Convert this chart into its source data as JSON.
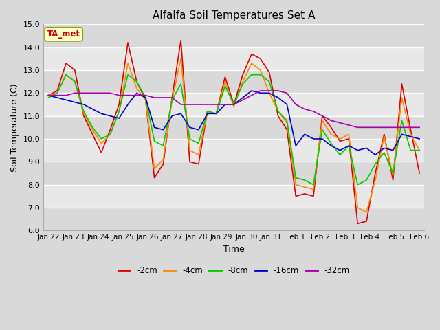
{
  "title": "Alfalfa Soil Temperatures Set A",
  "xlabel": "Time",
  "ylabel": "Soil Temperature (C)",
  "ylim": [
    6.0,
    15.0
  ],
  "yticks": [
    6.0,
    7.0,
    8.0,
    9.0,
    10.0,
    11.0,
    12.0,
    13.0,
    14.0,
    15.0
  ],
  "legend_label": "TA_met",
  "line_colors": {
    "-2cm": "#dd0000",
    "-4cm": "#ff8800",
    "-8cm": "#00cc00",
    "-16cm": "#0000cc",
    "-32cm": "#aa00aa"
  },
  "x_labels": [
    "Jan 22",
    "Jan 23",
    "Jan 24",
    "Jan 25",
    "Jan 26",
    "Jan 27",
    "Jan 28",
    "Jan 29",
    "Jan 30",
    "Jan 31",
    "Feb 1",
    "Feb 2",
    "Feb 3",
    "Feb 4",
    "Feb 5",
    "Feb 6"
  ],
  "background_color": "#d9d9d9",
  "plot_bg_color": "#e8e8e8",
  "series": {
    "-2cm": [
      11.9,
      12.1,
      13.3,
      13.0,
      11.0,
      10.2,
      9.4,
      10.4,
      11.5,
      14.2,
      12.5,
      11.7,
      8.3,
      8.9,
      11.8,
      14.3,
      9.0,
      8.9,
      11.2,
      11.1,
      12.7,
      11.5,
      12.8,
      13.7,
      13.5,
      12.9,
      11.0,
      10.4,
      7.5,
      7.6,
      7.5,
      11.0,
      10.5,
      9.9,
      10.0,
      6.3,
      6.4,
      8.5,
      10.2,
      8.2,
      12.4,
      10.4,
      8.5
    ],
    "-4cm": [
      11.9,
      12.0,
      12.8,
      12.5,
      11.1,
      10.4,
      9.8,
      10.2,
      11.2,
      13.3,
      12.2,
      11.7,
      8.7,
      9.1,
      11.7,
      13.5,
      9.5,
      9.3,
      11.2,
      11.1,
      12.5,
      11.4,
      12.5,
      13.3,
      13.0,
      12.0,
      11.2,
      10.7,
      8.0,
      7.9,
      7.8,
      10.8,
      10.2,
      10.0,
      10.2,
      7.0,
      6.8,
      8.2,
      10.1,
      8.4,
      11.8,
      10.2,
      9.5
    ],
    "-8cm": [
      11.8,
      12.0,
      12.8,
      12.5,
      11.2,
      10.5,
      10.0,
      10.2,
      11.2,
      12.8,
      12.5,
      11.8,
      9.9,
      9.7,
      11.7,
      12.4,
      10.0,
      9.8,
      11.2,
      11.1,
      12.3,
      11.5,
      12.4,
      12.8,
      12.8,
      12.5,
      11.2,
      10.8,
      8.3,
      8.2,
      8.0,
      10.4,
      9.8,
      9.3,
      9.7,
      8.0,
      8.2,
      8.9,
      9.4,
      8.5,
      10.8,
      9.5,
      9.5
    ],
    "-16cm": [
      11.9,
      11.8,
      11.7,
      11.6,
      11.5,
      11.3,
      11.1,
      11.0,
      10.9,
      11.5,
      12.0,
      11.8,
      10.5,
      10.4,
      11.0,
      11.1,
      10.5,
      10.4,
      11.1,
      11.1,
      11.5,
      11.5,
      11.8,
      12.1,
      12.0,
      12.0,
      11.8,
      11.5,
      9.7,
      10.2,
      10.0,
      10.0,
      9.7,
      9.5,
      9.7,
      9.5,
      9.6,
      9.3,
      9.6,
      9.5,
      10.2,
      10.1,
      10.0
    ],
    "-32cm": [
      11.9,
      11.9,
      11.9,
      12.0,
      12.0,
      12.0,
      12.0,
      12.0,
      11.9,
      11.9,
      11.9,
      11.9,
      11.8,
      11.8,
      11.8,
      11.5,
      11.5,
      11.5,
      11.5,
      11.5,
      11.5,
      11.5,
      11.7,
      11.9,
      12.1,
      12.1,
      12.1,
      12.0,
      11.5,
      11.3,
      11.2,
      11.0,
      10.8,
      10.7,
      10.6,
      10.5,
      10.5,
      10.5,
      10.5,
      10.5,
      10.5,
      10.5,
      10.5
    ]
  }
}
